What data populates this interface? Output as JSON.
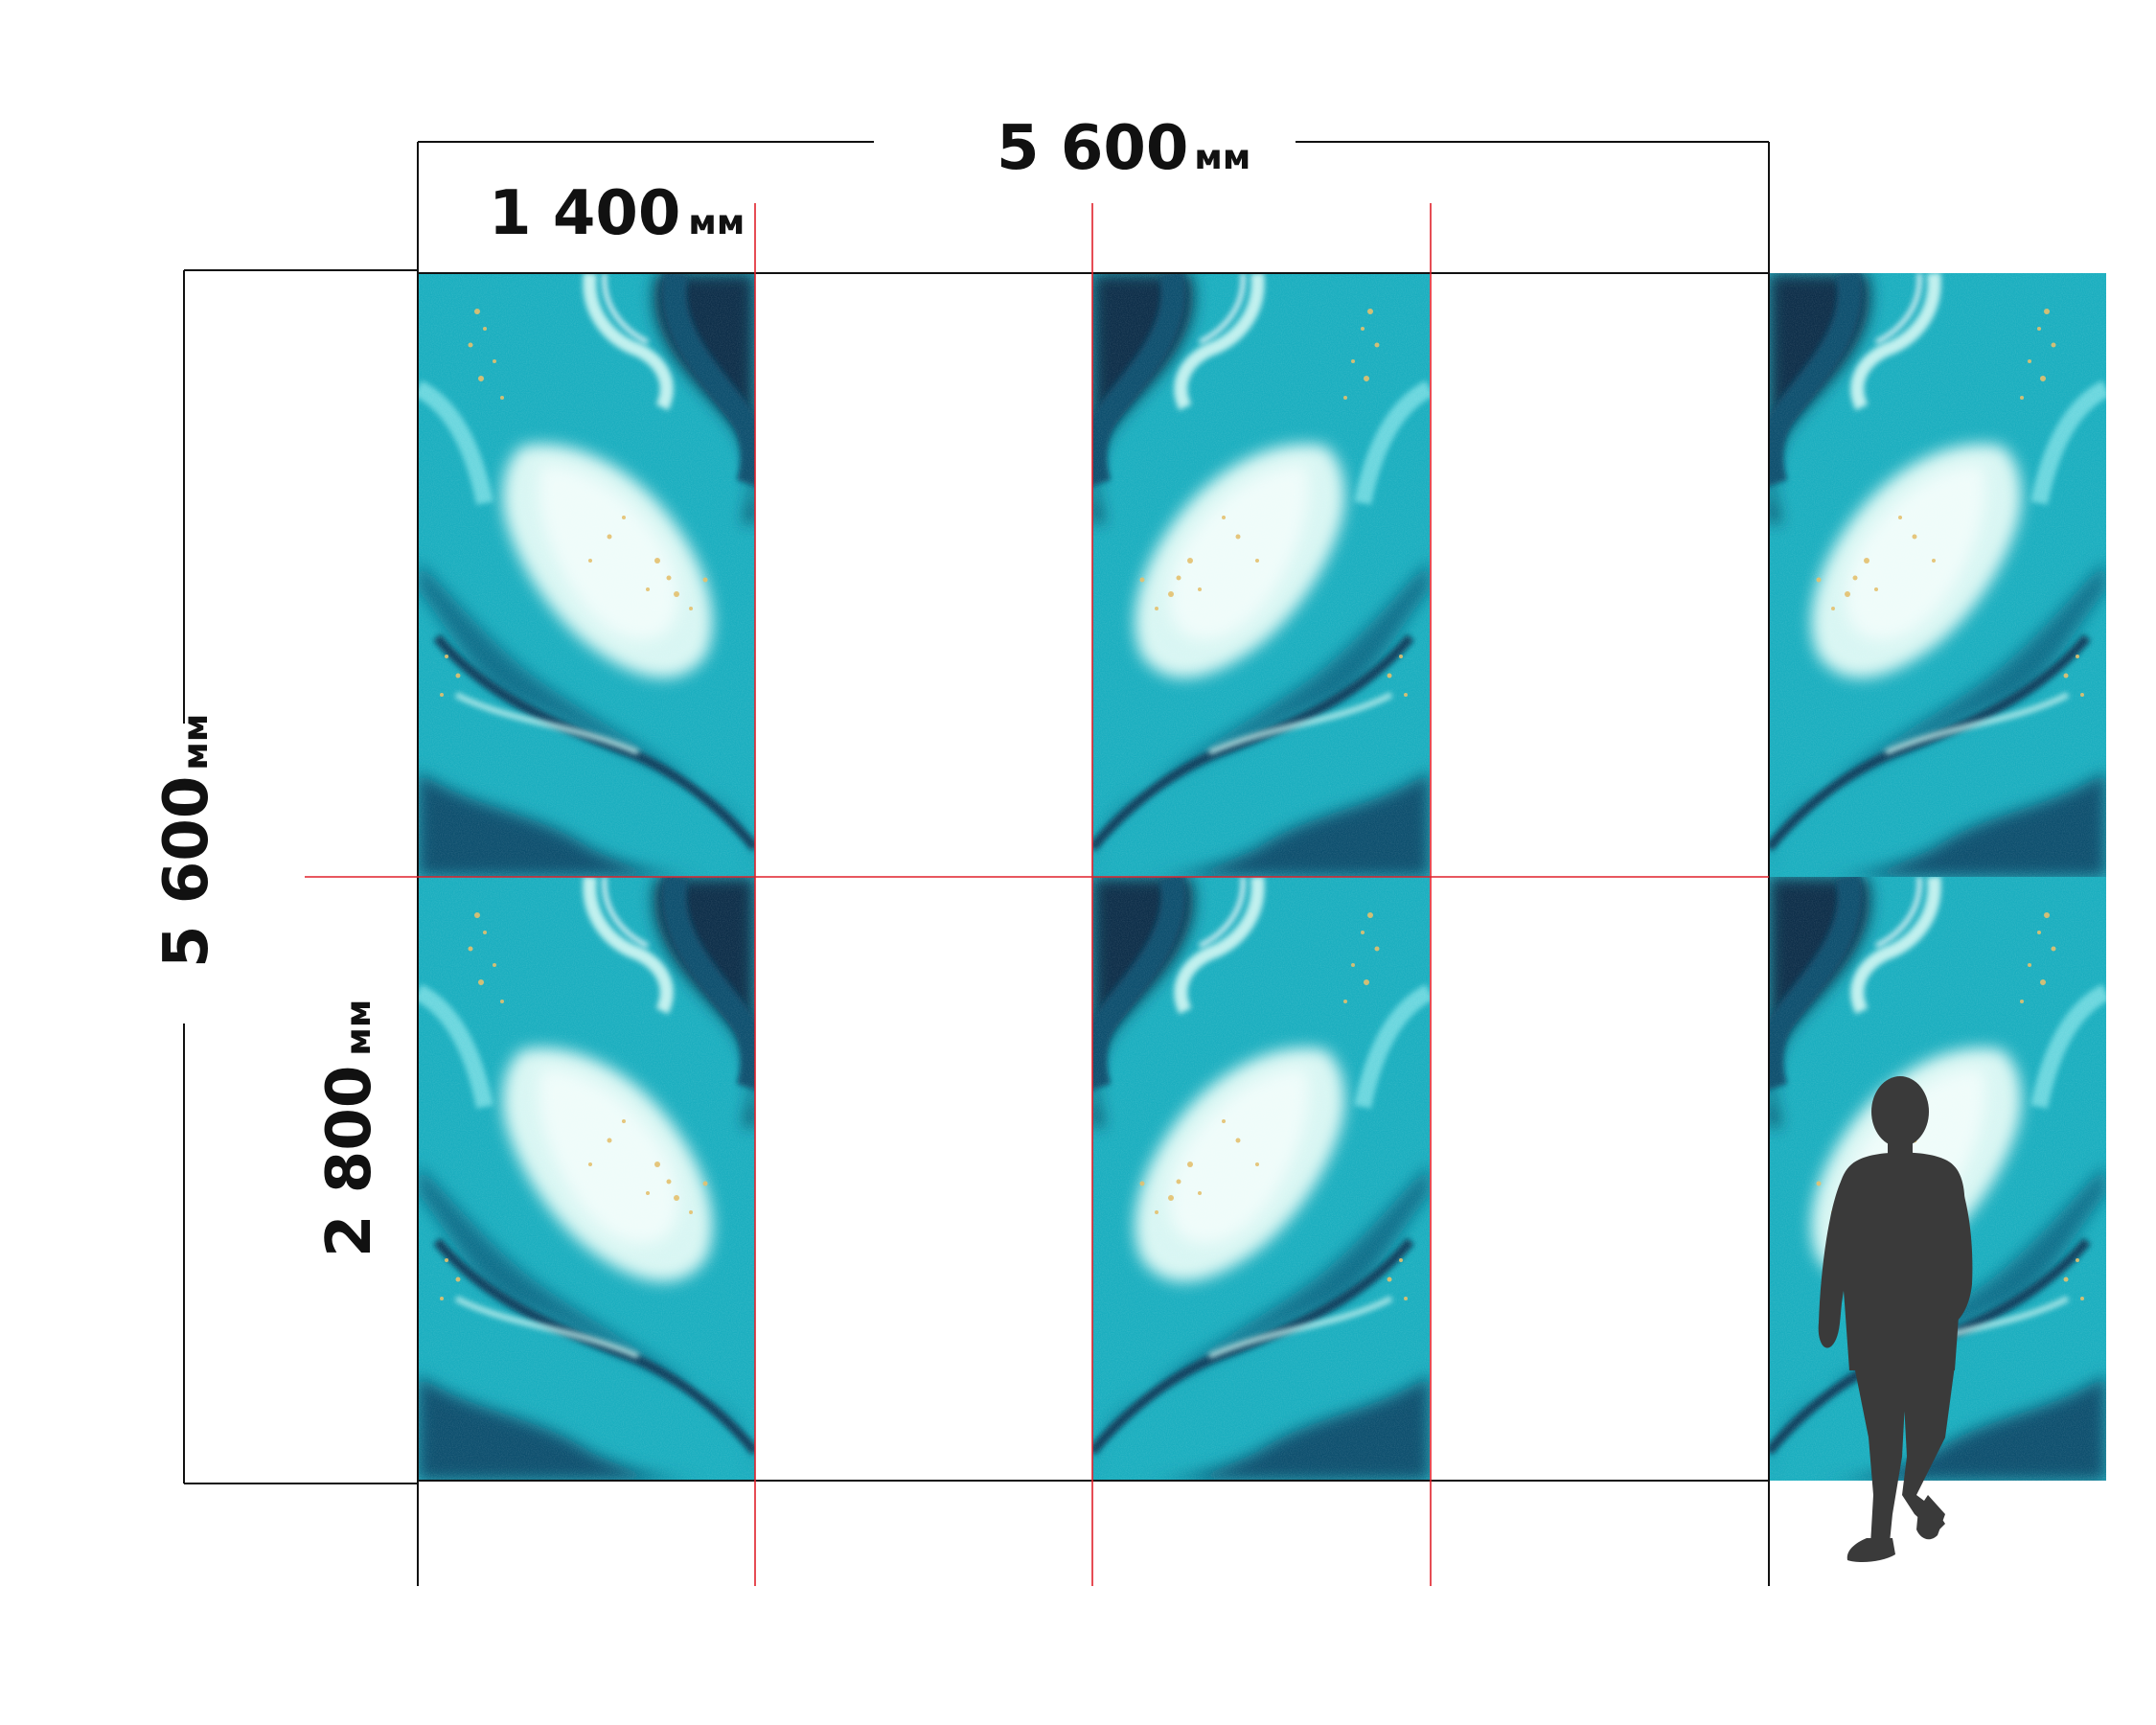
{
  "dimensions": {
    "total_width": {
      "value": "5 600",
      "unit": "мм"
    },
    "panel_width": {
      "value": "1 400",
      "unit": "мм"
    },
    "total_height": {
      "value": "5 600",
      "unit": "мм"
    },
    "panel_height": {
      "value": "2 800",
      "unit": "мм"
    }
  },
  "panel_grid": {
    "columns": 4,
    "rows": 2
  },
  "colors": {
    "cut_line": "#e0202a",
    "dimension_line": "#111111",
    "marble_light": "#d8f6f3",
    "marble_mid": "#2fc4cf",
    "marble_teal": "#13a4b8",
    "marble_dark": "#0b4f6e",
    "marble_navy": "#0a2d4a",
    "gold_fleck": "#e3bf6a",
    "silhouette": "#3a3a3a"
  }
}
